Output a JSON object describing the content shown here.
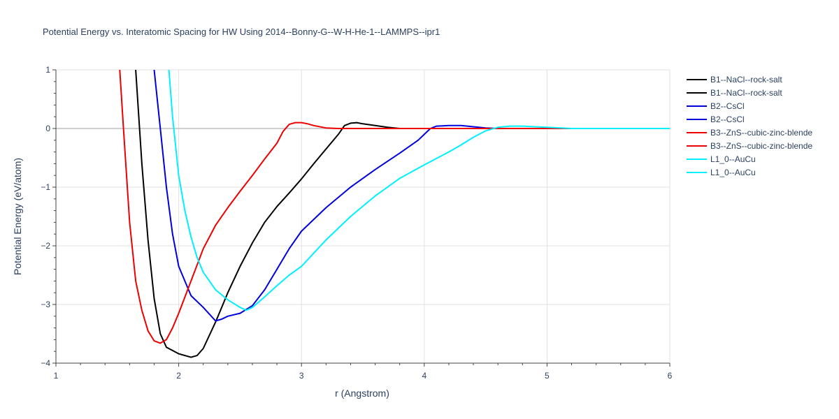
{
  "chart_data": {
    "type": "line",
    "title": "Potential Energy vs. Interatomic Spacing for HW Using 2014--Bonny-G--W-H-He-1--LAMMPS--ipr1",
    "xlabel": "r (Angstrom)",
    "ylabel": "Potential Energy (eV/atom)",
    "xlim": [
      1,
      6
    ],
    "ylim": [
      -4,
      1
    ],
    "xticks": [
      1,
      2,
      3,
      4,
      5,
      6
    ],
    "yticks": [
      -4,
      -3,
      -2,
      -1,
      0,
      1
    ],
    "xtick_labels": [
      "1",
      "2",
      "3",
      "4",
      "5",
      "6"
    ],
    "ytick_labels": [
      "−4",
      "−3",
      "−2",
      "−1",
      "0",
      "1"
    ],
    "grid": true,
    "legend_position": "right",
    "series": [
      {
        "name": "B1--NaCl--rock-salt",
        "color": "#000000",
        "x": [
          1.65,
          1.7,
          1.75,
          1.8,
          1.85,
          1.9,
          2.0,
          2.1,
          2.15,
          2.2,
          2.3,
          2.4,
          2.5,
          2.6,
          2.7,
          2.8,
          2.9,
          3.0,
          3.1,
          3.2,
          3.3,
          3.35,
          3.4,
          3.45,
          3.5,
          3.6,
          3.7,
          3.8,
          3.9,
          4.0,
          5.0,
          6.0
        ],
        "y": [
          1.0,
          -0.6,
          -1.9,
          -2.9,
          -3.5,
          -3.73,
          -3.84,
          -3.9,
          -3.87,
          -3.75,
          -3.3,
          -2.8,
          -2.35,
          -1.95,
          -1.6,
          -1.33,
          -1.1,
          -0.86,
          -0.6,
          -0.35,
          -0.1,
          0.05,
          0.09,
          0.1,
          0.08,
          0.05,
          0.02,
          0.0,
          0.0,
          0.0,
          0.0,
          0.0
        ]
      },
      {
        "name": "B1--NaCl--rock-salt",
        "color": "#000000",
        "x": [],
        "y": []
      },
      {
        "name": "B2--CsCl",
        "color": "#0000dd",
        "x": [
          1.8,
          1.85,
          1.9,
          1.95,
          2.0,
          2.1,
          2.2,
          2.3,
          2.35,
          2.4,
          2.5,
          2.6,
          2.7,
          2.8,
          2.9,
          3.0,
          3.2,
          3.4,
          3.6,
          3.8,
          3.95,
          4.05,
          4.1,
          4.2,
          4.3,
          4.4,
          4.5,
          4.6,
          5.0,
          6.0
        ],
        "y": [
          1.0,
          0.0,
          -1.0,
          -1.8,
          -2.35,
          -2.85,
          -3.05,
          -3.28,
          -3.25,
          -3.2,
          -3.15,
          -3.02,
          -2.75,
          -2.4,
          -2.05,
          -1.75,
          -1.35,
          -1.0,
          -0.7,
          -0.42,
          -0.2,
          0.0,
          0.04,
          0.05,
          0.05,
          0.03,
          0.01,
          0.0,
          0.0,
          0.0
        ]
      },
      {
        "name": "B2--CsCl",
        "color": "#0000dd",
        "x": [],
        "y": []
      },
      {
        "name": "B3--ZnS--cubic-zinc-blende",
        "color": "#ee0000",
        "x": [
          1.52,
          1.55,
          1.6,
          1.65,
          1.7,
          1.75,
          1.8,
          1.85,
          1.9,
          1.95,
          2.0,
          2.1,
          2.2,
          2.3,
          2.4,
          2.5,
          2.6,
          2.7,
          2.8,
          2.85,
          2.9,
          2.95,
          3.0,
          3.05,
          3.1,
          3.2,
          3.3,
          3.4,
          4.0,
          5.0,
          6.0
        ],
        "y": [
          1.0,
          0.0,
          -1.6,
          -2.6,
          -3.1,
          -3.45,
          -3.62,
          -3.66,
          -3.6,
          -3.4,
          -3.15,
          -2.6,
          -2.05,
          -1.65,
          -1.35,
          -1.07,
          -0.8,
          -0.52,
          -0.25,
          -0.05,
          0.07,
          0.1,
          0.1,
          0.08,
          0.05,
          0.01,
          0.0,
          0.0,
          0.0,
          0.0,
          0.0
        ]
      },
      {
        "name": "B3--ZnS--cubic-zinc-blende",
        "color": "#ee0000",
        "x": [],
        "y": []
      },
      {
        "name": "L1_0--AuCu",
        "color": "#00f0ff",
        "x": [
          1.92,
          1.95,
          2.0,
          2.05,
          2.1,
          2.15,
          2.2,
          2.3,
          2.4,
          2.5,
          2.55,
          2.6,
          2.7,
          2.8,
          2.9,
          3.0,
          3.2,
          3.4,
          3.6,
          3.8,
          4.0,
          4.2,
          4.3,
          4.4,
          4.5,
          4.6,
          4.7,
          4.8,
          4.9,
          5.0,
          5.2,
          6.0
        ],
        "y": [
          1.0,
          0.2,
          -0.8,
          -1.4,
          -1.85,
          -2.2,
          -2.45,
          -2.75,
          -2.92,
          -3.05,
          -3.1,
          -3.05,
          -2.87,
          -2.68,
          -2.5,
          -2.35,
          -1.9,
          -1.5,
          -1.15,
          -0.85,
          -0.62,
          -0.4,
          -0.28,
          -0.15,
          -0.04,
          0.02,
          0.04,
          0.04,
          0.03,
          0.02,
          0.0,
          0.0
        ]
      },
      {
        "name": "L1_0--AuCu",
        "color": "#00f0ff",
        "x": [],
        "y": []
      }
    ]
  }
}
